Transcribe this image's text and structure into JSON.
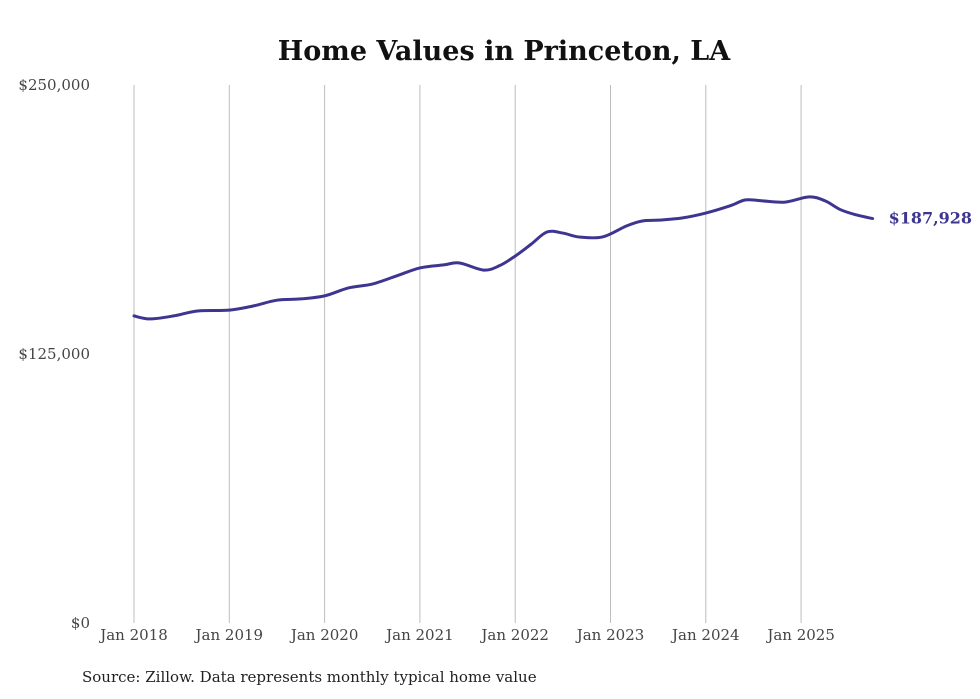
{
  "chart_data": {
    "type": "line",
    "title": "Home Values in Princeton, LA",
    "xlabel": "",
    "ylabel": "",
    "ylim": [
      0,
      250000
    ],
    "yticks": [
      0,
      125000,
      250000
    ],
    "ytick_labels": [
      "$0",
      "$125,000",
      "$250,000"
    ],
    "xticks": [
      "Jan 2018",
      "Jan 2019",
      "Jan 2020",
      "Jan 2021",
      "Jan 2022",
      "Jan 2023",
      "Jan 2024",
      "Jan 2025"
    ],
    "grid": "vertical",
    "line_color": "#3d3590",
    "series": [
      {
        "name": "Typical home value",
        "x": [
          "2018-01",
          "2018-03",
          "2018-06",
          "2018-09",
          "2019-01",
          "2019-04",
          "2019-07",
          "2019-10",
          "2020-01",
          "2020-04",
          "2020-07",
          "2020-10",
          "2021-01",
          "2021-04",
          "2021-06",
          "2021-09",
          "2021-11",
          "2022-01",
          "2022-03",
          "2022-05",
          "2022-07",
          "2022-09",
          "2022-12",
          "2023-03",
          "2023-05",
          "2023-07",
          "2023-10",
          "2024-01",
          "2024-04",
          "2024-06",
          "2024-08",
          "2024-11",
          "2025-02",
          "2025-04",
          "2025-06",
          "2025-08",
          "2025-10"
        ],
        "values": [
          142700,
          141300,
          142700,
          145000,
          145400,
          147300,
          150000,
          150600,
          152000,
          155700,
          157500,
          161200,
          165000,
          166400,
          167300,
          164000,
          166000,
          170500,
          176000,
          181700,
          181200,
          179400,
          179400,
          184500,
          186800,
          187200,
          188200,
          190500,
          193800,
          196600,
          196200,
          195600,
          198000,
          196200,
          192000,
          189600,
          187928
        ]
      }
    ],
    "end_label": "$187,928",
    "source": "Source: Zillow. Data represents monthly typical home value"
  }
}
